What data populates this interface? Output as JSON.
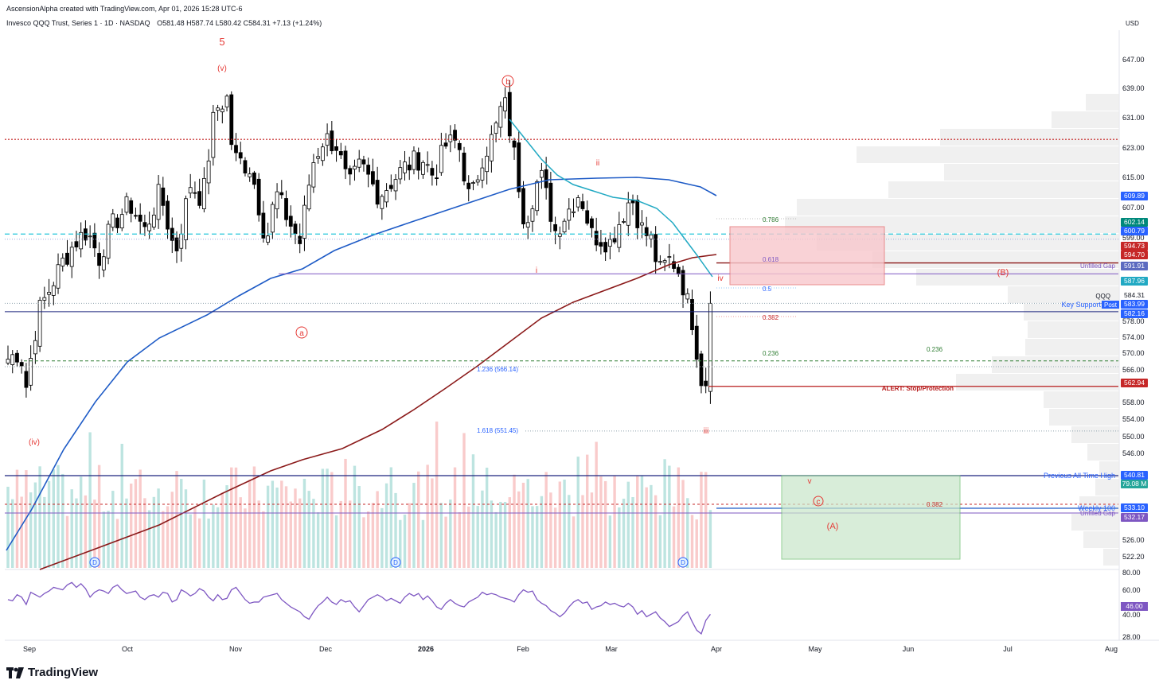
{
  "header": {
    "attribution": "AscensionAlpha created with TradingView.com, Apr 01, 2026 15:28 UTC-6",
    "symbol_line": "Invesco QQQ Trust, Series 1 · 1D · NASDAQ",
    "ohlc": "O581.48  H587.74  L580.42  C584.31  +7.13 (+1.24%)",
    "currency": "USD"
  },
  "footer": {
    "brand": "TradingView"
  },
  "colors": {
    "up_candle": "#ffffff",
    "down_candle": "#000000",
    "ma_blue": "#1e5bc6",
    "ma_red": "#8b1a1a",
    "ema_teal": "#21a9c3",
    "rsi": "#7e57c2",
    "vol_up": "#b2dfdb",
    "vol_down": "#f8c2c2",
    "wave_label": "#e53935",
    "fib": "#2962ff"
  },
  "chart_data": {
    "type": "candlestick",
    "symbol": "QQQ",
    "interval": "1D",
    "price_axis": {
      "ticks": [
        647.0,
        639.0,
        631.0,
        623.0,
        615.0,
        607.0,
        599.0,
        578.0,
        574.0,
        570.0,
        566.0,
        558.0,
        554.0,
        550.0,
        546.0,
        526.0,
        522.2
      ],
      "range": [
        520,
        651
      ]
    },
    "time_axis": {
      "labels": [
        "Sep",
        "Oct",
        "Nov",
        "Dec",
        "2026",
        "Feb",
        "Mar",
        "Apr",
        "May",
        "Jun",
        "Jul",
        "Aug"
      ]
    },
    "price_tags": [
      {
        "value": "609.89",
        "color": "#2962ff"
      },
      {
        "value": "602.14",
        "color": "#00897b"
      },
      {
        "value": "600.79",
        "color": "#2962ff"
      },
      {
        "value": "594.73",
        "color": "#c62828"
      },
      {
        "value": "594.70",
        "color": "#c62828"
      },
      {
        "value": "591.91",
        "color": "#5c6bc0"
      },
      {
        "value": "587.96",
        "color": "#21a9c3"
      },
      {
        "value": "584.31",
        "color": "#ffffff"
      },
      {
        "value": "583.99",
        "color": "#2962ff"
      },
      {
        "value": "582.16",
        "color": "#2962ff"
      },
      {
        "value": "562.94",
        "color": "#c62828"
      },
      {
        "value": "540.81",
        "color": "#2962ff"
      },
      {
        "value": "79.08 M",
        "color": "#26a69a"
      },
      {
        "value": "533.10",
        "color": "#2962ff"
      },
      {
        "value": "532.17",
        "color": "#7e57c2"
      }
    ],
    "horizontal_levels": [
      {
        "label": "Unfilled Gap",
        "value": 591.91
      },
      {
        "label": "Key Support",
        "value": 583.99
      },
      {
        "label": "ALERT: Stop/Protection",
        "value": 562.94
      },
      {
        "label": "Previous All Time High",
        "value": 540.81
      },
      {
        "label": "Weekly 100",
        "value": 533.1
      },
      {
        "label": "Unfilled Gap",
        "value": 532.17
      },
      {
        "label": "",
        "value": 626.5
      }
    ],
    "fib_levels": [
      {
        "label": "0.786",
        "value": 604.0
      },
      {
        "label": "0.618",
        "value": 593.0
      },
      {
        "label": "0.5",
        "value": 586.5
      },
      {
        "label": "0.382",
        "value": 579.5
      },
      {
        "label": "0.236",
        "value": 569.5
      },
      {
        "label": "1.236 (566.14)",
        "value": 566.14
      },
      {
        "label": "1.618 (551.45)",
        "value": 551.45
      }
    ],
    "green_level_labels": [
      "0.236",
      "0.382"
    ],
    "wave_labels": [
      "5",
      "(v)",
      "(iv)",
      "a",
      "b",
      "c",
      "i",
      "ii",
      "iii",
      "iv",
      "v",
      "(B)",
      "(A)"
    ],
    "dividend_markers": [
      "D",
      "D",
      "D"
    ],
    "rsi": {
      "ticks": [
        "80.00",
        "60.00",
        "40.00",
        "28.00"
      ],
      "last": "46.00",
      "values": [
        58,
        57,
        62,
        60,
        54,
        64,
        62,
        60,
        63,
        65,
        68,
        67,
        66,
        70,
        72,
        68,
        71,
        67,
        60,
        64,
        66,
        65,
        63,
        68,
        70,
        66,
        63,
        64,
        65,
        60,
        58,
        61,
        62,
        60,
        64,
        63,
        56,
        58,
        66,
        64,
        61,
        63,
        67,
        65,
        60,
        57,
        62,
        58,
        59,
        66,
        68,
        63,
        58,
        55,
        56,
        56,
        60,
        61,
        62,
        63,
        58,
        55,
        52,
        50,
        48,
        44,
        42,
        48,
        53,
        56,
        60,
        56,
        54,
        58,
        56,
        57,
        52,
        48,
        53,
        58,
        60,
        62,
        60,
        57,
        59,
        57,
        55,
        60,
        63,
        61,
        63,
        58,
        61,
        57,
        52,
        50,
        55,
        58,
        55,
        53,
        52,
        56,
        58,
        60,
        64,
        62,
        63,
        62,
        60,
        59,
        58,
        56,
        62,
        66,
        64,
        65,
        58,
        55,
        53,
        49,
        47,
        44,
        47,
        52,
        56,
        58,
        55,
        56,
        50,
        52,
        53,
        56,
        54,
        55,
        53,
        52,
        55,
        52,
        46,
        49,
        44,
        46,
        48,
        43,
        40,
        36,
        38,
        40,
        45,
        48,
        40,
        33,
        30,
        41,
        46
      ]
    }
  }
}
